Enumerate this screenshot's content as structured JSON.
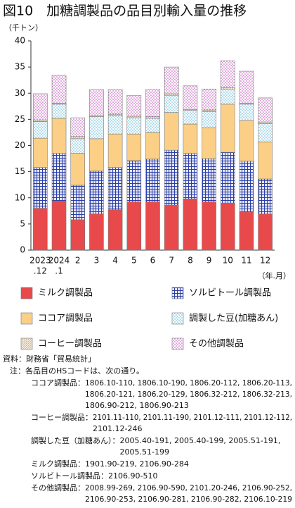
{
  "chart_data": {
    "type": "stacked_bar",
    "title": "図10　加糖調製品の品目別輸入量の推移",
    "y_unit": "（千トン）",
    "x_unit": "（年.月）",
    "categories": [
      [
        "2023",
        ".12"
      ],
      [
        "2024",
        ".1"
      ],
      [
        "2"
      ],
      [
        "3"
      ],
      [
        "4"
      ],
      [
        "5"
      ],
      [
        "6"
      ],
      [
        "7"
      ],
      [
        "8"
      ],
      [
        "9"
      ],
      [
        "10"
      ],
      [
        "11"
      ],
      [
        "12"
      ]
    ],
    "ylim": [
      0,
      40
    ],
    "yticks": [
      0,
      5,
      10,
      15,
      20,
      25,
      30,
      35,
      40
    ],
    "series": [
      {
        "name": "ミルク調製品",
        "color": "#e84a4c",
        "pattern": "solid",
        "values": [
          8.0,
          9.4,
          5.8,
          6.9,
          7.7,
          9.2,
          9.2,
          8.6,
          9.8,
          9.2,
          9.0,
          7.3,
          6.9
        ]
      },
      {
        "name": "ソルビトール調製品",
        "color": "#2b3fa8",
        "pattern": "grid",
        "values": [
          7.8,
          9.1,
          6.6,
          8.2,
          8.1,
          7.9,
          8.2,
          10.5,
          8.7,
          8.3,
          9.7,
          9.7,
          6.7
        ]
      },
      {
        "name": "ココア調製品",
        "color": "#fbcf86",
        "pattern": "solid",
        "values": [
          5.6,
          6.7,
          6.1,
          6.2,
          6.4,
          5.1,
          5.1,
          7.2,
          5.6,
          5.9,
          9.2,
          7.8,
          7.1
        ]
      },
      {
        "name": "調製した豆(加糖あん)",
        "color": "#5fb8d8",
        "pattern": "dots",
        "values": [
          3.2,
          2.7,
          2.8,
          4.2,
          3.5,
          3.1,
          2.7,
          3.3,
          2.6,
          3.1,
          2.9,
          3.1,
          3.5
        ]
      },
      {
        "name": "コーヒー調製品",
        "color": "#c9a77c",
        "pattern": "hatch",
        "values": [
          0.3,
          0.2,
          0.4,
          0.2,
          0.3,
          0.3,
          0.3,
          0.3,
          0.2,
          0.3,
          0.3,
          0.2,
          0.3
        ]
      },
      {
        "name": "その他調製品",
        "color": "#c050b8",
        "pattern": "dots",
        "values": [
          5.0,
          5.3,
          3.6,
          5.0,
          4.7,
          4.0,
          5.2,
          5.1,
          4.5,
          4.0,
          5.1,
          6.1,
          4.6
        ]
      }
    ]
  },
  "notes": {
    "source_label": "資料：",
    "source": "財務省「貿易統計」",
    "note_label": "注：",
    "note": "各品目のHSコードは、次の通り。",
    "items": [
      {
        "label": "ココア調製品：",
        "lines": [
          "1806.10-110, 1806.10-190, 1806.20-112, 1806.20-113,",
          "1806.20-121, 1806.20-129, 1806.32-212, 1806.32-213,",
          "1806.90-212, 1806.90-213"
        ]
      },
      {
        "label": "コーヒー調製品：",
        "lines": [
          "2101.11-110, 2101.11-190, 2101.12-111, 2101.12-112,",
          "2101.12-246"
        ]
      },
      {
        "label": "調製した豆（加糖あん）：",
        "lines": [
          "2005.40-191, 2005.40-199, 2005.51-191,",
          "2005.51-199"
        ]
      },
      {
        "label": "ミルク調製品：",
        "lines": [
          "1901.90-219, 2106.90-284"
        ]
      },
      {
        "label": "ソルビトール調製品：",
        "lines": [
          "2106.90-510"
        ]
      },
      {
        "label": "その他調製品：",
        "lines": [
          "2008.99-269, 2106.90-590, 2101.20-246, 2106.90-252,",
          "2106.90-253, 2106.90-281, 2106.90-282, 2106.10-219"
        ]
      }
    ]
  }
}
